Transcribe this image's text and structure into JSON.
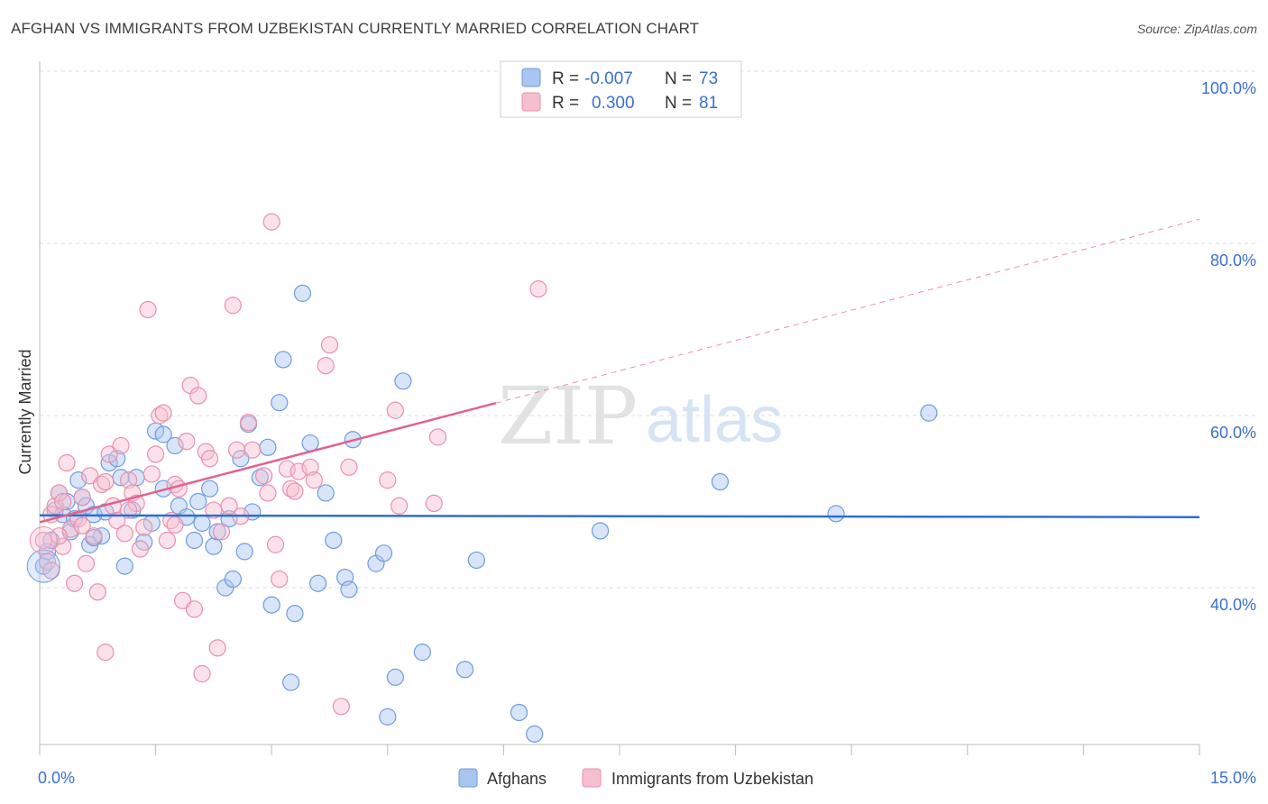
{
  "header": {
    "title": "AFGHAN VS IMMIGRANTS FROM UZBEKISTAN CURRENTLY MARRIED CORRELATION CHART",
    "source": "Source: ZipAtlas.com"
  },
  "watermark": {
    "zip": "ZIP",
    "atlas": "atlas"
  },
  "colors": {
    "blue_fill": "#a9c6f0",
    "blue_stroke": "#6f9be0",
    "blue_line": "#2f6fd0",
    "pink_fill": "#f6bfd0",
    "pink_stroke": "#ea8fab",
    "pink_line": "#e0628e",
    "tick_label": "#3b6fd0",
    "grid": "#dddddd"
  },
  "legend_box": {
    "rows": [
      {
        "r_label": "R = ",
        "r_value": "-0.007",
        "n_label": "N = ",
        "n_value": "73",
        "color": "blue"
      },
      {
        "r_label": "R = ",
        "r_value": "0.300",
        "n_label": "N = ",
        "n_value": "81",
        "color": "pink"
      }
    ]
  },
  "chart_data": {
    "type": "scatter",
    "title": "AFGHAN VS IMMIGRANTS FROM UZBEKISTAN CURRENTLY MARRIED CORRELATION CHART",
    "xlabel": "",
    "ylabel": "Currently Married",
    "xlim": [
      0,
      15
    ],
    "ylim": [
      20,
      102
    ],
    "x_tick_labels": [
      "0.0%",
      "15.0%"
    ],
    "y_ticks": [
      40,
      60,
      80,
      100
    ],
    "y_tick_labels": [
      "40.0%",
      "60.0%",
      "80.0%",
      "100.0%"
    ],
    "grid": true,
    "legend_placement": "bottom",
    "series": [
      {
        "name": "Afghans",
        "color": "blue",
        "r": -0.007,
        "n": 73,
        "trend": {
          "x0": 0,
          "y0": 48.4,
          "x1": 15,
          "y1": 48.2,
          "dashed_from_x": null
        },
        "points": [
          [
            0.05,
            42.5
          ],
          [
            0.1,
            44.2
          ],
          [
            0.15,
            45.5
          ],
          [
            0.2,
            49.0
          ],
          [
            0.25,
            51.0
          ],
          [
            0.3,
            48.5
          ],
          [
            0.35,
            50.0
          ],
          [
            0.4,
            46.5
          ],
          [
            0.45,
            48.0
          ],
          [
            0.5,
            52.5
          ],
          [
            0.55,
            50.5
          ],
          [
            0.6,
            49.5
          ],
          [
            0.65,
            45.0
          ],
          [
            0.7,
            48.5
          ],
          [
            0.8,
            46.0
          ],
          [
            0.85,
            48.8
          ],
          [
            0.9,
            54.5
          ],
          [
            1.0,
            55.0
          ],
          [
            1.05,
            52.8
          ],
          [
            1.1,
            42.5
          ],
          [
            1.2,
            49.0
          ],
          [
            1.25,
            52.8
          ],
          [
            1.35,
            45.3
          ],
          [
            1.45,
            47.5
          ],
          [
            1.5,
            58.2
          ],
          [
            1.6,
            57.8
          ],
          [
            1.6,
            51.5
          ],
          [
            1.75,
            56.5
          ],
          [
            1.8,
            49.5
          ],
          [
            1.9,
            48.2
          ],
          [
            2.0,
            45.5
          ],
          [
            2.05,
            50.0
          ],
          [
            2.1,
            47.5
          ],
          [
            2.2,
            51.5
          ],
          [
            2.25,
            44.8
          ],
          [
            2.3,
            46.5
          ],
          [
            2.4,
            40.0
          ],
          [
            2.45,
            48.0
          ],
          [
            2.5,
            41.0
          ],
          [
            2.6,
            55.0
          ],
          [
            2.65,
            44.2
          ],
          [
            2.7,
            59.0
          ],
          [
            2.75,
            48.8
          ],
          [
            2.85,
            52.8
          ],
          [
            2.95,
            56.3
          ],
          [
            3.0,
            38.0
          ],
          [
            3.1,
            61.5
          ],
          [
            3.15,
            66.5
          ],
          [
            3.25,
            29.0
          ],
          [
            3.3,
            37.0
          ],
          [
            3.4,
            74.2
          ],
          [
            3.5,
            56.8
          ],
          [
            3.6,
            40.5
          ],
          [
            3.7,
            51.0
          ],
          [
            3.8,
            45.5
          ],
          [
            3.95,
            41.2
          ],
          [
            4.0,
            39.8
          ],
          [
            4.05,
            57.2
          ],
          [
            4.35,
            42.8
          ],
          [
            4.45,
            44.0
          ],
          [
            4.5,
            25.0
          ],
          [
            4.6,
            29.6
          ],
          [
            4.7,
            64.0
          ],
          [
            4.95,
            32.5
          ],
          [
            5.5,
            30.5
          ],
          [
            5.65,
            43.2
          ],
          [
            6.2,
            25.5
          ],
          [
            6.4,
            23.0
          ],
          [
            7.25,
            46.6
          ],
          [
            8.8,
            52.3
          ],
          [
            10.3,
            48.6
          ],
          [
            11.5,
            60.3
          ],
          [
            0.7,
            45.8
          ]
        ]
      },
      {
        "name": "Immigrants from Uzbekistan",
        "color": "pink",
        "r": 0.3,
        "n": 81,
        "trend": {
          "x0": 0,
          "y0": 47.6,
          "x1": 15,
          "y1": 82.8,
          "dashed_from_x": 5.9
        },
        "points": [
          [
            0.05,
            45.5
          ],
          [
            0.1,
            43.0
          ],
          [
            0.15,
            48.5
          ],
          [
            0.2,
            49.5
          ],
          [
            0.25,
            51.0
          ],
          [
            0.3,
            50.0
          ],
          [
            0.35,
            54.5
          ],
          [
            0.4,
            46.8
          ],
          [
            0.45,
            40.5
          ],
          [
            0.5,
            48.0
          ],
          [
            0.55,
            50.5
          ],
          [
            0.6,
            42.8
          ],
          [
            0.65,
            53.0
          ],
          [
            0.7,
            46.0
          ],
          [
            0.75,
            39.5
          ],
          [
            0.8,
            52.0
          ],
          [
            0.85,
            32.5
          ],
          [
            0.9,
            55.5
          ],
          [
            0.95,
            49.5
          ],
          [
            1.0,
            47.8
          ],
          [
            1.05,
            56.5
          ],
          [
            1.1,
            46.3
          ],
          [
            1.15,
            52.5
          ],
          [
            1.2,
            51.0
          ],
          [
            1.25,
            49.8
          ],
          [
            1.3,
            44.5
          ],
          [
            1.35,
            47.0
          ],
          [
            1.4,
            72.3
          ],
          [
            1.5,
            55.5
          ],
          [
            1.55,
            60.0
          ],
          [
            1.6,
            60.3
          ],
          [
            1.65,
            45.5
          ],
          [
            1.7,
            47.8
          ],
          [
            1.75,
            52.0
          ],
          [
            1.8,
            51.5
          ],
          [
            1.85,
            38.5
          ],
          [
            1.9,
            57.0
          ],
          [
            1.95,
            63.5
          ],
          [
            2.0,
            37.5
          ],
          [
            2.05,
            62.3
          ],
          [
            2.1,
            30.0
          ],
          [
            2.15,
            55.8
          ],
          [
            2.2,
            55.0
          ],
          [
            2.3,
            33.0
          ],
          [
            2.35,
            46.5
          ],
          [
            2.45,
            49.5
          ],
          [
            2.5,
            72.8
          ],
          [
            2.55,
            56.0
          ],
          [
            2.6,
            48.3
          ],
          [
            2.7,
            59.2
          ],
          [
            2.75,
            56.0
          ],
          [
            2.9,
            53.0
          ],
          [
            3.0,
            82.5
          ],
          [
            3.05,
            45.0
          ],
          [
            3.1,
            41.0
          ],
          [
            3.2,
            53.8
          ],
          [
            3.25,
            51.5
          ],
          [
            3.3,
            51.2
          ],
          [
            3.35,
            53.5
          ],
          [
            3.5,
            54.0
          ],
          [
            3.55,
            52.5
          ],
          [
            3.7,
            65.8
          ],
          [
            3.75,
            68.2
          ],
          [
            3.9,
            26.2
          ],
          [
            4.0,
            54.0
          ],
          [
            4.5,
            52.5
          ],
          [
            4.6,
            60.6
          ],
          [
            4.65,
            49.5
          ],
          [
            5.1,
            49.8
          ],
          [
            5.15,
            57.5
          ],
          [
            6.45,
            74.7
          ],
          [
            0.3,
            44.8
          ],
          [
            0.55,
            47.2
          ],
          [
            0.85,
            52.3
          ],
          [
            1.15,
            49.0
          ],
          [
            1.45,
            53.2
          ],
          [
            1.75,
            47.3
          ],
          [
            2.25,
            49.0
          ],
          [
            2.95,
            51.0
          ],
          [
            0.15,
            42.0
          ],
          [
            0.25,
            46.0
          ]
        ]
      }
    ]
  },
  "bottom_legend": [
    {
      "label": "Afghans",
      "color": "blue"
    },
    {
      "label": "Immigrants from Uzbekistan",
      "color": "pink"
    }
  ]
}
